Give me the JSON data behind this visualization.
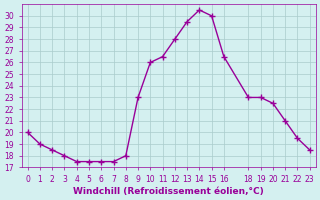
{
  "x": [
    0,
    1,
    2,
    3,
    4,
    5,
    6,
    7,
    8,
    9,
    10,
    11,
    12,
    13,
    14,
    15,
    16,
    18,
    19,
    20,
    21,
    22,
    23
  ],
  "y": [
    20,
    19,
    18.5,
    18,
    17.5,
    17.5,
    17.5,
    17.5,
    18,
    23,
    26,
    26.5,
    28,
    29.5,
    30.5,
    30,
    26.5,
    23,
    23,
    22.5,
    21,
    19.5,
    18.5
  ],
  "line_color": "#990099",
  "marker_color": "#990099",
  "bg_color": "#d4f0f0",
  "grid_color": "#aacccc",
  "xlabel": "Windchill (Refroidissement éolien,°C)",
  "xlabel_color": "#990099",
  "tick_color": "#990099",
  "ylim": [
    17,
    31
  ],
  "xlim": [
    -0.5,
    23.5
  ],
  "yticks": [
    17,
    18,
    19,
    20,
    21,
    22,
    23,
    24,
    25,
    26,
    27,
    28,
    29,
    30
  ],
  "xticks": [
    0,
    1,
    2,
    3,
    4,
    5,
    6,
    7,
    8,
    9,
    10,
    11,
    12,
    13,
    14,
    15,
    16,
    18,
    19,
    20,
    21,
    22,
    23
  ],
  "xtick_labels": [
    "0",
    "1",
    "2",
    "3",
    "4",
    "5",
    "6",
    "7",
    "8",
    "9",
    "10",
    "11",
    "12",
    "13",
    "14",
    "15",
    "16",
    "18",
    "19",
    "20",
    "21",
    "22",
    "23"
  ]
}
